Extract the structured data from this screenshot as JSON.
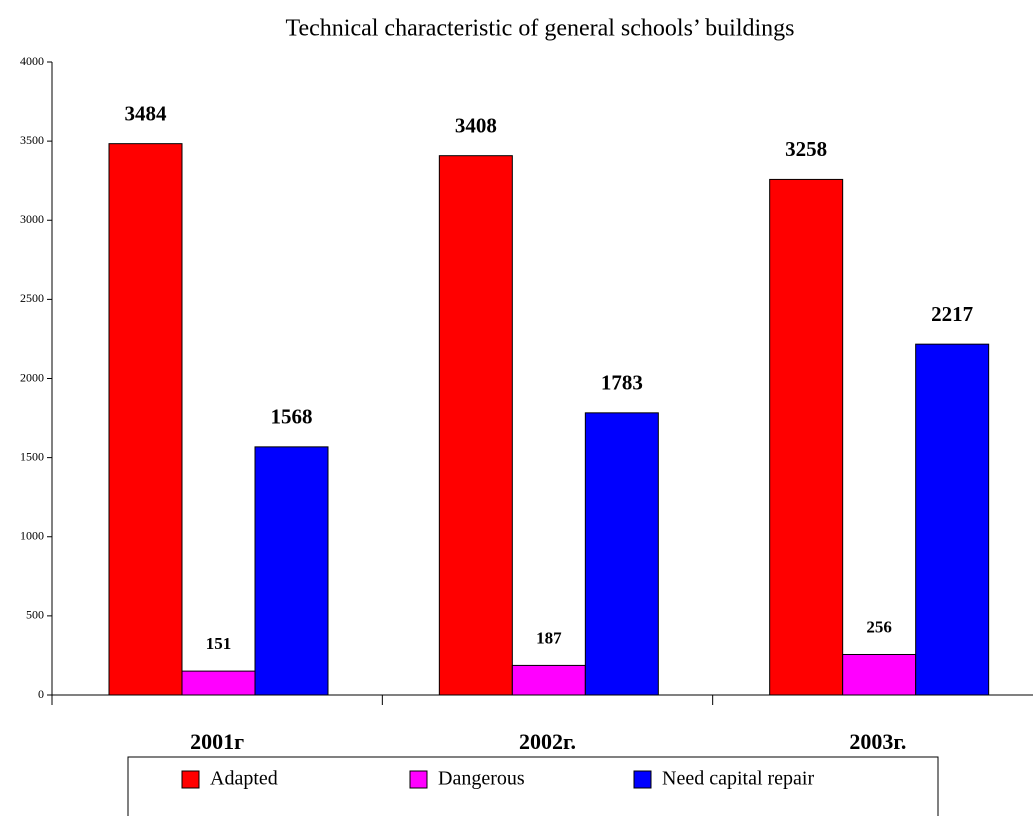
{
  "chart_data": {
    "type": "bar",
    "title": "Technical characteristic of general schools’ buildings",
    "categories": [
      "2001г",
      "2002г.",
      "2003г."
    ],
    "series": [
      {
        "name": "Adapted",
        "color": "#ff0000",
        "values": [
          3484,
          3408,
          3258
        ]
      },
      {
        "name": "Dangerous",
        "color": "#ff00ff",
        "values": [
          151,
          187,
          256
        ]
      },
      {
        "name": "Need capital repair",
        "color": "#0000ff",
        "values": [
          1568,
          1783,
          2217
        ]
      }
    ],
    "ylim": [
      0,
      4000
    ],
    "yticks": [
      0,
      500,
      1000,
      1500,
      2000,
      2500,
      3000,
      3500,
      4000
    ],
    "grid": false,
    "legend": "bottom"
  }
}
